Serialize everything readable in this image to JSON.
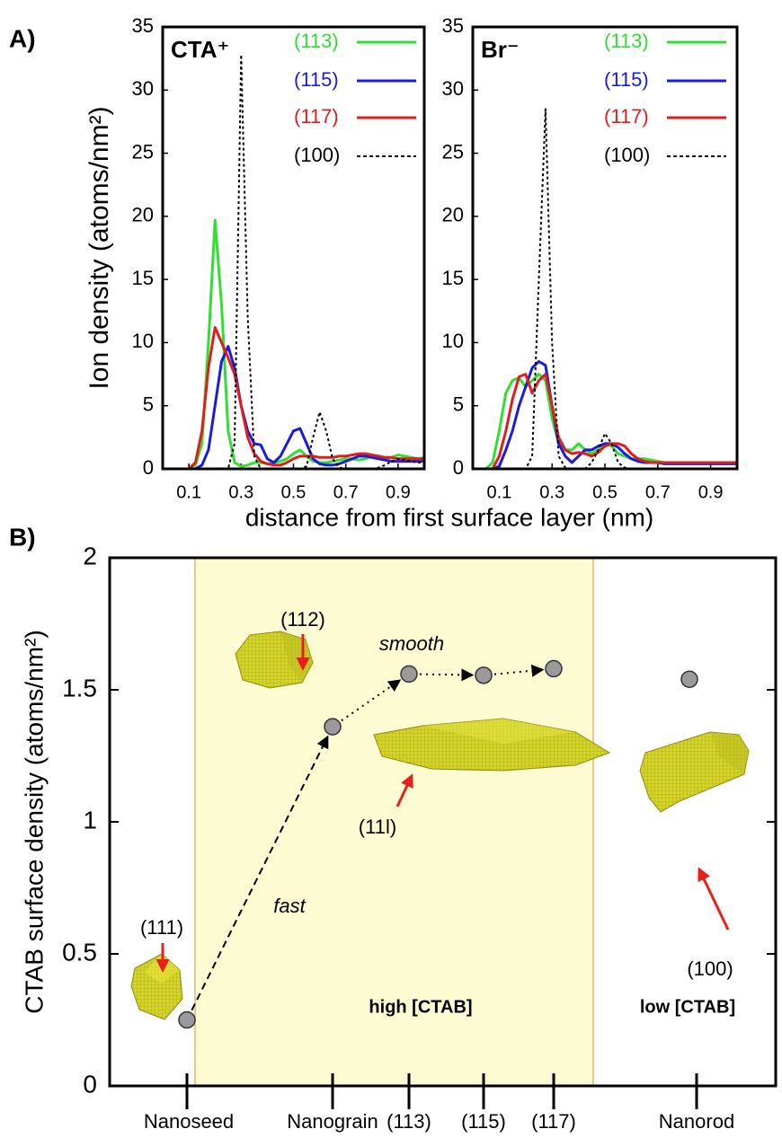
{
  "panels": [
    {
      "label": "A)",
      "xlabel": "distance from first surface layer (nm)",
      "ylabel": "Ion density (atoms/nm²)"
    },
    {
      "label": "B)"
    }
  ],
  "chart_data": [
    {
      "type": "line",
      "title": "CTA⁺",
      "x": [
        0.05,
        0.075,
        0.1,
        0.125,
        0.15,
        0.175,
        0.2,
        0.225,
        0.25,
        0.275,
        0.3,
        0.325,
        0.35,
        0.375,
        0.4,
        0.425,
        0.45,
        0.475,
        0.5,
        0.525,
        0.55,
        0.575,
        0.6,
        0.625,
        0.65,
        0.675,
        0.7,
        0.725,
        0.75,
        0.775,
        0.8,
        0.825,
        0.85,
        0.875,
        0.9,
        0.925,
        0.95,
        0.975,
        1.0
      ],
      "series": [
        {
          "name": "(113)",
          "color": "#2fe02f",
          "dash": false,
          "values": [
            0,
            0,
            0,
            0.3,
            2,
            10,
            19.7,
            13,
            3,
            0.5,
            0.2,
            0.3,
            0.5,
            0.5,
            0.4,
            0.5,
            0.6,
            0.8,
            1.2,
            1.5,
            1,
            0.6,
            0.5,
            0.5,
            0.6,
            0.7,
            0.8,
            0.8,
            0.7,
            0.8,
            1,
            0.9,
            0.8,
            0.9,
            1.1,
            1,
            0.9,
            0.8,
            0.9
          ]
        },
        {
          "name": "(115)",
          "color": "#1a1ae0",
          "dash": false,
          "values": [
            0,
            0,
            0,
            0,
            0.3,
            1.5,
            5,
            8.5,
            9.7,
            8,
            5,
            3,
            2,
            1.9,
            0.8,
            0.5,
            1,
            2,
            3,
            3.2,
            2,
            0.8,
            0.4,
            0.3,
            0.3,
            0.4,
            0.6,
            0.8,
            1,
            1,
            0.9,
            0.8,
            0.7,
            0.6,
            0.6,
            0.6,
            0.6,
            0.6,
            0.6
          ]
        },
        {
          "name": "(117)",
          "color": "#e01c1c",
          "dash": false,
          "values": [
            0,
            0,
            0,
            0.5,
            3,
            8,
            11.2,
            10,
            8.8,
            7.5,
            5,
            2.5,
            1.2,
            0.6,
            0.4,
            0.3,
            0.3,
            0.5,
            0.8,
            1,
            1,
            1,
            0.9,
            0.9,
            0.9,
            1,
            1,
            1.1,
            1.2,
            1.2,
            1.1,
            1,
            0.9,
            0.9,
            0.8,
            0.8,
            0.8,
            0.8,
            0.8
          ]
        },
        {
          "name": "(100)",
          "color": "#000000",
          "dash": true,
          "values": [
            0,
            0,
            0,
            0,
            0,
            0,
            0,
            0,
            0,
            2,
            32.8,
            12,
            1,
            0,
            0,
            0,
            0,
            0,
            0,
            0,
            0.2,
            2.5,
            4.5,
            3,
            0.8,
            0.1,
            0,
            0,
            0,
            0,
            0,
            0.1,
            0.3,
            0.6,
            0.8,
            0.7,
            0.6,
            0.5,
            0.5
          ]
        }
      ],
      "xlim": [
        0,
        1.0
      ],
      "ylim": [
        0,
        35
      ],
      "xticks": [
        0.1,
        0.3,
        0.5,
        0.7,
        0.9
      ],
      "yticks": [
        0,
        5,
        10,
        15,
        20,
        25,
        30,
        35
      ]
    },
    {
      "type": "line",
      "title": "Br⁻",
      "x": [
        0.05,
        0.075,
        0.1,
        0.125,
        0.15,
        0.175,
        0.2,
        0.225,
        0.25,
        0.275,
        0.3,
        0.325,
        0.35,
        0.375,
        0.4,
        0.425,
        0.45,
        0.475,
        0.5,
        0.525,
        0.55,
        0.575,
        0.6,
        0.625,
        0.65,
        0.675,
        0.7,
        0.725,
        0.75,
        0.775,
        0.8,
        0.825,
        0.85,
        0.875,
        0.9,
        0.925,
        0.95,
        0.975,
        1.0
      ],
      "series": [
        {
          "name": "(113)",
          "color": "#2fe02f",
          "dash": false,
          "values": [
            0,
            0.5,
            3,
            6,
            7,
            7.2,
            6.5,
            7,
            7.5,
            7,
            4,
            2,
            1.5,
            1.5,
            2,
            1.5,
            1.2,
            1.5,
            2,
            1.8,
            1.2,
            1,
            0.8,
            0.8,
            0.8,
            0.7,
            0.6,
            0.5,
            0.5,
            0.5,
            0.5,
            0.5,
            0.5,
            0.5,
            0.5,
            0.5,
            0.5,
            0.5,
            0.5
          ]
        },
        {
          "name": "(115)",
          "color": "#1a1ae0",
          "dash": false,
          "values": [
            0,
            0,
            0.2,
            1.5,
            3,
            5,
            6.5,
            8,
            8.5,
            8.2,
            5,
            2,
            1,
            0.5,
            1,
            1.5,
            1.5,
            1.8,
            2,
            2,
            1.7,
            1.2,
            0.8,
            0.6,
            0.5,
            0.5,
            0.5,
            0.4,
            0.4,
            0.4,
            0.4,
            0.4,
            0.4,
            0.4,
            0.4,
            0.4,
            0.4,
            0.4,
            0.4
          ]
        },
        {
          "name": "(117)",
          "color": "#e01c1c",
          "dash": false,
          "values": [
            0,
            0,
            1,
            3,
            5.5,
            7.3,
            7.5,
            6,
            7,
            7.5,
            5,
            2.5,
            1.5,
            1.2,
            1.3,
            1.2,
            1,
            1.3,
            1.8,
            2,
            2,
            1.8,
            1.2,
            0.8,
            0.6,
            0.5,
            0.5,
            0.5,
            0.5,
            0.5,
            0.5,
            0.5,
            0.5,
            0.5,
            0.5,
            0.5,
            0.5,
            0.5,
            0.5
          ]
        },
        {
          "name": "(100)",
          "color": "#000000",
          "dash": true,
          "values": [
            0,
            0,
            0,
            0,
            0,
            0,
            0,
            1,
            15,
            28.5,
            10,
            1,
            0.1,
            0,
            0,
            0,
            0.5,
            1.5,
            2.8,
            2,
            0.5,
            0.1,
            0,
            0,
            0,
            0,
            0,
            0,
            0,
            0,
            0,
            0,
            0,
            0,
            0,
            0,
            0,
            0,
            0
          ]
        }
      ],
      "xlim": [
        0,
        1.0
      ],
      "ylim": [
        0,
        35
      ],
      "xticks": [
        0.1,
        0.3,
        0.5,
        0.7,
        0.9
      ],
      "yticks": [
        0,
        5,
        10,
        15,
        20,
        25,
        30,
        35
      ]
    },
    {
      "type": "point",
      "ylabel": "CTAB surface density (atoms/nm²)",
      "categories": [
        "Nanoseed",
        "Nanograin",
        "(113)",
        "(115)",
        "(117)",
        "Nanorod"
      ],
      "values": [
        0.25,
        1.36,
        1.56,
        1.555,
        1.58,
        1.54
      ],
      "color": "#9a9a9a",
      "ylim": [
        0,
        2
      ],
      "yticks": [
        0,
        0.5,
        1,
        1.5,
        2
      ],
      "annotations": [
        "(111)",
        "(112)",
        "(11l)",
        "(100)",
        "fast",
        "smooth",
        "high [CTAB]",
        "low [CTAB]"
      ]
    }
  ]
}
